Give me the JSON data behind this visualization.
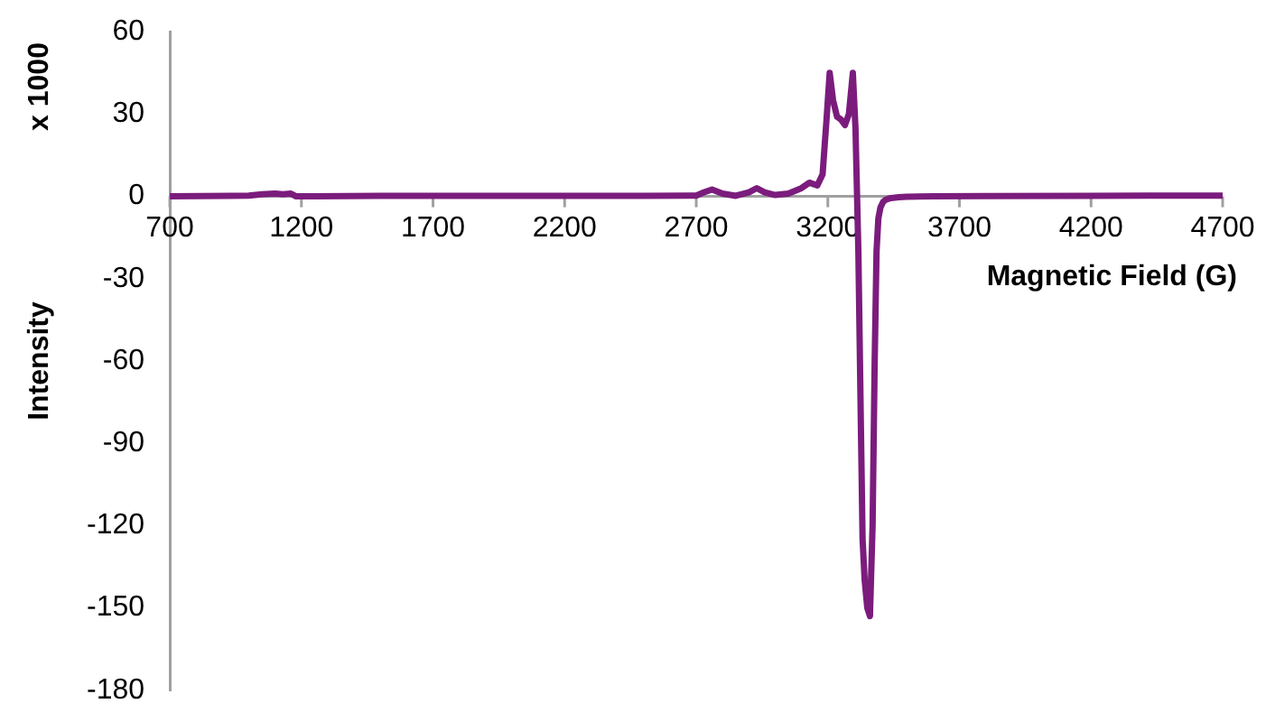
{
  "chart_data": {
    "type": "line",
    "ylabel": "Intensity",
    "subtitle": "x 1000",
    "xlabel": "Magnetic Field (G)",
    "x": [
      700,
      1000,
      1050,
      1100,
      1130,
      1160,
      1180,
      1250,
      1500,
      2000,
      2500,
      2700,
      2730,
      2760,
      2800,
      2850,
      2900,
      2930,
      2960,
      3000,
      3050,
      3100,
      3130,
      3160,
      3180,
      3195,
      3207,
      3220,
      3235,
      3250,
      3265,
      3280,
      3295,
      3305,
      3316,
      3325,
      3332,
      3340,
      3350,
      3360,
      3370,
      3378,
      3385,
      3392,
      3400,
      3410,
      3420,
      3440,
      3470,
      3500,
      3600,
      3800,
      4200,
      4700
    ],
    "series": [
      {
        "color": "#7b1c7d",
        "values": [
          0,
          0.3,
          0.8,
          1,
          0.8,
          1,
          0,
          0,
          0.2,
          0.2,
          0.2,
          0.3,
          1.5,
          2.5,
          1,
          0.2,
          1.5,
          3,
          1.5,
          0.5,
          1,
          3,
          5,
          4,
          8,
          28,
          45,
          35,
          29,
          28,
          26,
          30,
          45,
          25,
          -20,
          -80,
          -125,
          -140,
          -150,
          -153,
          -120,
          -60,
          -20,
          -8,
          -4,
          -2,
          -1.2,
          -0.6,
          -0.3,
          -0.1,
          0,
          0.1,
          0.2,
          0.3
        ]
      }
    ],
    "xlim": [
      700,
      4700
    ],
    "xticks": [
      700,
      1200,
      1700,
      2200,
      2700,
      3200,
      3700,
      4200,
      4700
    ],
    "ylim": [
      -180,
      60
    ],
    "yticks": [
      -180,
      -150,
      -120,
      -90,
      -60,
      -30,
      0,
      30,
      60
    ],
    "grid": false,
    "legend": false,
    "marker": "none",
    "line_style": "solid"
  }
}
